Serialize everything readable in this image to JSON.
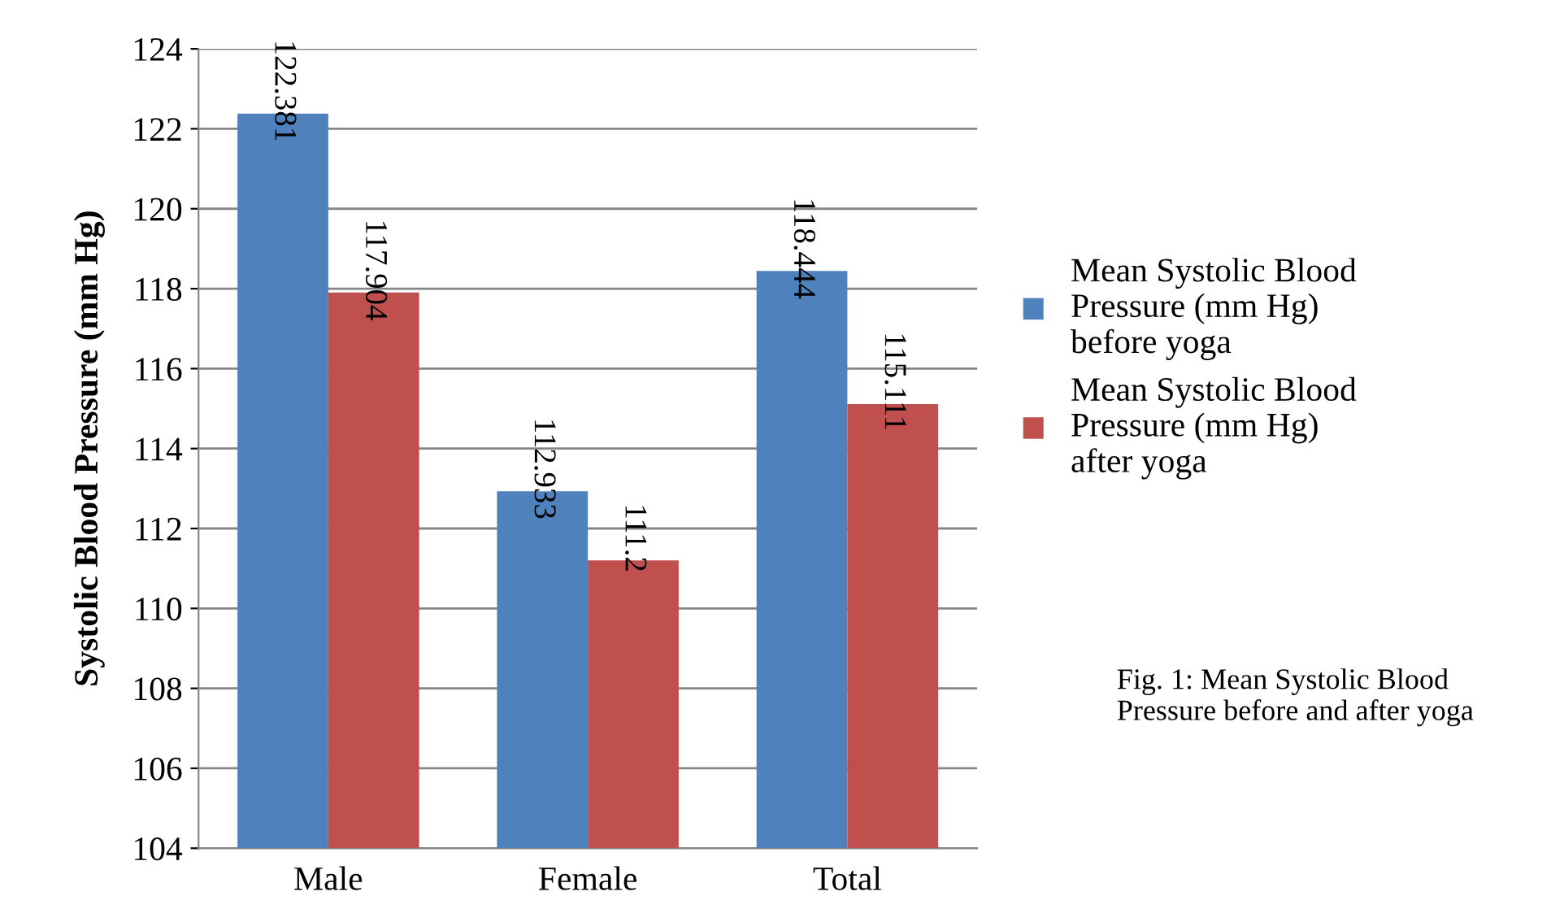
{
  "chart_data": {
    "type": "bar",
    "ylabel": "Systolic Blood Pressure (mm Hg)",
    "categories": [
      "Male",
      "Female",
      "Total"
    ],
    "series": [
      {
        "name": "Mean Systolic Blood Pressure (mm Hg) before yoga",
        "color": "#4f81bd",
        "values": [
          122.381,
          112.933,
          118.444
        ]
      },
      {
        "name": "Mean Systolic Blood Pressure (mm Hg) after yoga",
        "color": "#c0504d",
        "values": [
          117.904,
          111.2,
          115.111
        ]
      }
    ],
    "ylim": [
      104,
      124
    ],
    "yticks": [
      104,
      106,
      108,
      110,
      112,
      114,
      116,
      118,
      120,
      122,
      124
    ],
    "grid": "y",
    "legend": "right",
    "data_labels": true,
    "annotations": [
      "Fig. 1: Mean Systolic Blood Pressure before and after yoga"
    ]
  }
}
